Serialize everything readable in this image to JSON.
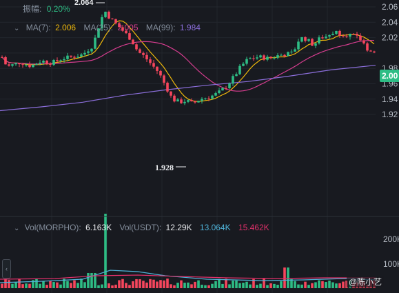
{
  "header": {
    "amplitude_label": "振幅:",
    "amplitude_value": "0.20%",
    "ma7_label": "MA(7):",
    "ma7_value": "2.006",
    "ma25_label": "MA(25):",
    "ma25_value": "2.005",
    "ma99_label": "MA(99):",
    "ma99_value": "1.984"
  },
  "price_axis": {
    "ticks": [
      "2.06",
      "2.04",
      "2.02",
      "1.98",
      "1.96",
      "1.94",
      "1.92"
    ],
    "current_price": "2.00"
  },
  "annotations": {
    "high_label": "2.064",
    "low_label": "1.928"
  },
  "volume_header": {
    "vol_morpho_label": "Vol(MORPHO):",
    "vol_morpho_value": "6.163K",
    "vol_usdt_label": "Vol(USDT):",
    "vol_usdt_value": "12.29K",
    "vol_ma1_value": "13.064K",
    "vol_ma2_value": "15.462K"
  },
  "volume_axis": {
    "ticks": [
      "200K",
      "100K"
    ]
  },
  "watermark": {
    "text": "@陈小艺"
  },
  "colors": {
    "up": "#2ebd85",
    "down": "#f6465d",
    "ma7": "#f0b90b",
    "ma25": "#d63d8f",
    "ma99": "#8c6fdc",
    "vol_ma1": "#4fb3d9",
    "vol_ma2": "#e0306a"
  }
}
